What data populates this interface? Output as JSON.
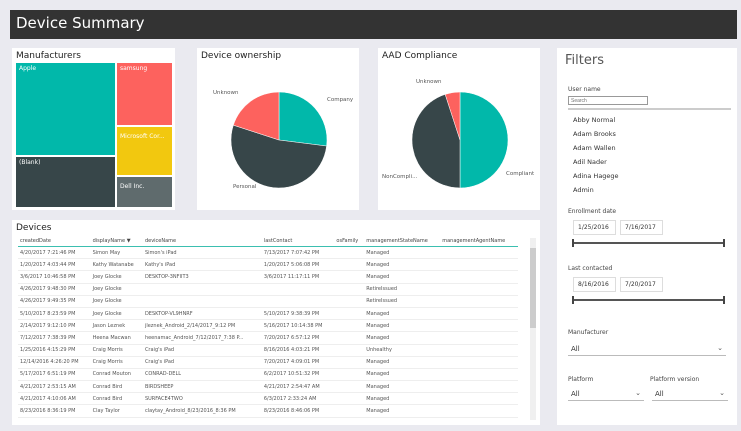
{
  "title": "Device Summary",
  "manufacturers": {
    "title": "Manufacturers",
    "tiles": [
      {
        "label": "Apple",
        "color": "#01b8aa"
      },
      {
        "label": "samsung",
        "color": "#fd625e"
      },
      {
        "label": "Microsoft Cor...",
        "color": "#f2c80f"
      },
      {
        "label": "(Blank)",
        "color": "#374649"
      },
      {
        "label": "Dell Inc.",
        "color": "#5f6b6d"
      }
    ]
  },
  "ownership": {
    "title": "Device ownership",
    "slices": [
      {
        "label": "Company",
        "value": 27,
        "color": "#01b8aa"
      },
      {
        "label": "Personal",
        "value": 53,
        "color": "#374649"
      },
      {
        "label": "Unknown",
        "value": 20,
        "color": "#fd625e"
      }
    ]
  },
  "compliance": {
    "title": "AAD Compliance",
    "slices": [
      {
        "label": "Compliant",
        "value": 50,
        "color": "#01b8aa"
      },
      {
        "label": "NonCompli...",
        "value": 45,
        "color": "#374649"
      },
      {
        "label": "Unknown",
        "value": 5,
        "color": "#fd625e"
      }
    ]
  },
  "devices": {
    "title": "Devices",
    "columns": [
      "createdDate",
      "displayName",
      "deviceName",
      "lastContact",
      "osFamily",
      "managementStateName",
      "managementAgentName"
    ],
    "rows": [
      [
        "4/20/2017 7:21:46 PM",
        "Simon May",
        "Simon's iPad",
        "7/13/2017 7:07:42 PM",
        "",
        "Managed",
        ""
      ],
      [
        "1/20/2017 4:03:44 PM",
        "Kathy Watanabe",
        "Kathy's iPad",
        "1/20/2017 5:06:08 PM",
        "",
        "Managed",
        ""
      ],
      [
        "3/6/2017 10:46:58 PM",
        "Joey Glocke",
        "DESKTOP-3NFIIT3",
        "3/6/2017 11:17:11 PM",
        "",
        "Managed",
        ""
      ],
      [
        "4/26/2017 9:48:30 PM",
        "Joey Glocke",
        "",
        "",
        "",
        "RetireIssued",
        ""
      ],
      [
        "4/26/2017 9:49:35 PM",
        "Joey Glocke",
        "",
        "",
        "",
        "RetireIssued",
        ""
      ],
      [
        "5/10/2017 8:23:59 PM",
        "Joey Glocke",
        "DESKTOP-VL9HNRF",
        "5/10/2017 9:38:39 PM",
        "",
        "Managed",
        ""
      ],
      [
        "2/14/2017 9:12:10 PM",
        "Jason Leznek",
        "jleznek_Android_2/14/2017_9:12 PM",
        "5/16/2017 10:14:38 PM",
        "",
        "Managed",
        ""
      ],
      [
        "7/12/2017 7:38:39 PM",
        "Heena Macwan",
        "heenamac_Android_7/12/2017_7:38 P...",
        "7/20/2017 6:57:12 PM",
        "",
        "Managed",
        ""
      ],
      [
        "1/25/2016 4:15:29 PM",
        "Craig Morris",
        "Craig's iPad",
        "8/16/2016 4:03:21 PM",
        "",
        "Unhealthy",
        ""
      ],
      [
        "12/14/2016 4:26:20 PM",
        "Craig Morris",
        "Craig's iPad",
        "7/20/2017 4:09:01 PM",
        "",
        "Managed",
        ""
      ],
      [
        "5/17/2017 6:51:19 PM",
        "Conrad Mouton",
        "CONRAD-DELL",
        "6/2/2017 10:51:32 PM",
        "",
        "Managed",
        ""
      ],
      [
        "4/21/2017 2:53:15 AM",
        "Conrad Bird",
        "BIRDSHEEP",
        "4/21/2017 2:54:47 AM",
        "",
        "Managed",
        ""
      ],
      [
        "4/21/2017 4:10:06 AM",
        "Conrad Bird",
        "SURFACE4TWO",
        "6/3/2017 2:33:24 AM",
        "",
        "Managed",
        ""
      ],
      [
        "8/23/2016 8:36:19 PM",
        "Clay Taylor",
        "claytay_Android_8/23/2016_8:36 PM",
        "8/23/2016 8:46:06 PM",
        "",
        "Managed",
        ""
      ]
    ]
  },
  "filters": {
    "title": "Filters",
    "user_name_label": "User name",
    "search_placeholder": "Search",
    "users": [
      "Abby Normal",
      "Adam Brooks",
      "Adam Wallen",
      "Adil Nader",
      "Adina Hagege",
      "Admin"
    ],
    "enrollment_label": "Enrollment date",
    "enrollment_start": "1/25/2016",
    "enrollment_end": "7/16/2017",
    "contacted_label": "Last contacted",
    "contacted_start": "8/16/2016",
    "contacted_end": "7/20/2017",
    "manufacturer_label": "Manufacturer",
    "manufacturer_value": "All",
    "platform_label": "Platform",
    "platform_value": "All",
    "platform_version_label": "Platform version",
    "platform_version_value": "All"
  }
}
